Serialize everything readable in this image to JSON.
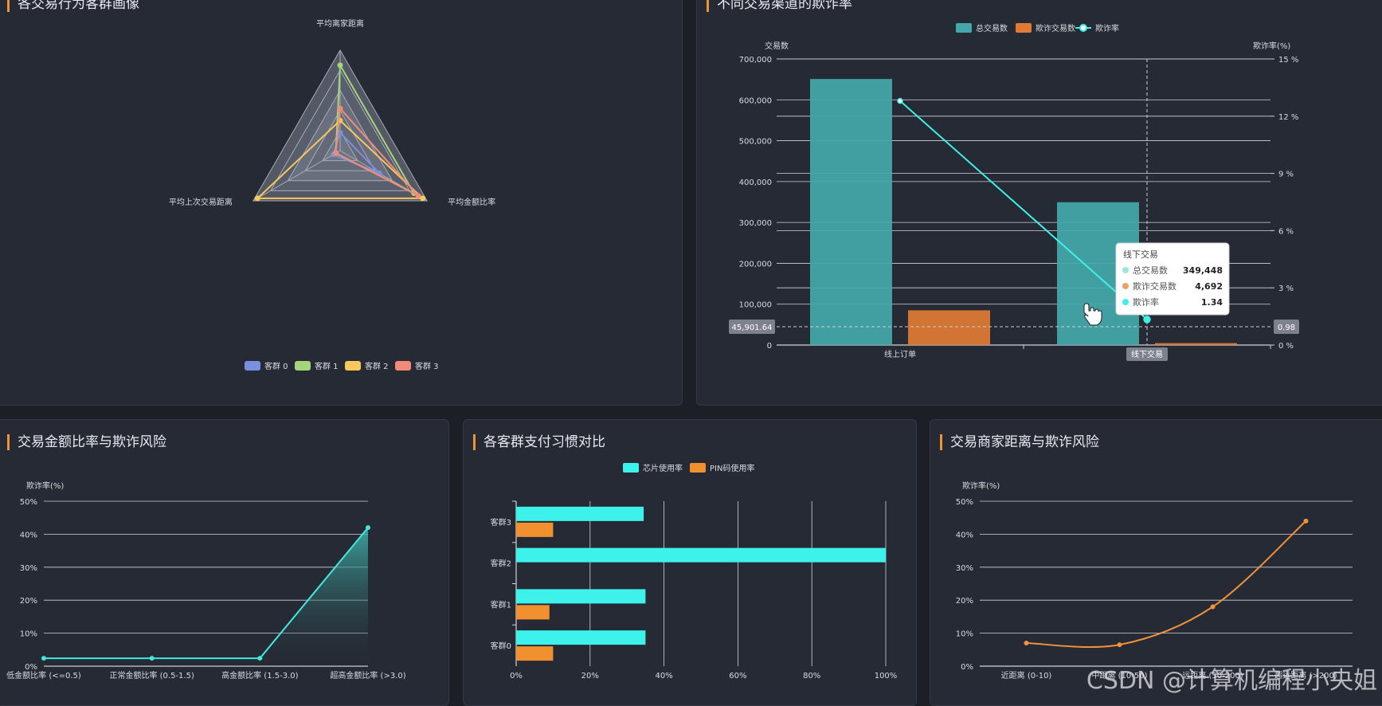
{
  "panels": {
    "radar": {
      "title": "各交易行为客群画像"
    },
    "channel": {
      "title": "不同交易渠道的欺诈率"
    },
    "ratio": {
      "title": "交易金额比率与欺诈风险"
    },
    "payment": {
      "title": "各客群支付习惯对比"
    },
    "distance": {
      "title": "交易商家距离与欺诈风险"
    }
  },
  "watermark": "CSDN @计算机编程小央姐",
  "colors": {
    "teal": "#44a8aa",
    "orange": "#e07a35",
    "cyan": "#40f0e8",
    "accent": "#f0923a"
  },
  "chart_data": [
    {
      "id": "radar",
      "type": "radar",
      "title": "各交易行为客群画像",
      "indicators": [
        "平均离家距离",
        "平均金额比率",
        "平均上次交易距离"
      ],
      "series": [
        {
          "name": "客群 0",
          "color": "#7b8fe0",
          "values": [
            0.18,
            0.45,
            0.08
          ]
        },
        {
          "name": "客群 1",
          "color": "#a5d47c",
          "values": [
            0.85,
            0.85,
            0.05
          ]
        },
        {
          "name": "客群 2",
          "color": "#f7c85a",
          "values": [
            0.3,
            0.95,
            0.95
          ]
        },
        {
          "name": "客群 3",
          "color": "#f28a7c",
          "values": [
            0.42,
            0.9,
            0.05
          ]
        }
      ]
    },
    {
      "id": "channel",
      "type": "bar",
      "title": "不同交易渠道的欺诈率",
      "categories": [
        "线上订单",
        "线下交易"
      ],
      "legend": [
        "总交易数",
        "欺诈交易数",
        "欺诈率"
      ],
      "ylabel_left": "交易数",
      "ylabel_right": "欺诈率(%)",
      "y_left_ticks": [
        "0",
        "100,000",
        "200,000",
        "300,000",
        "400,000",
        "500,000",
        "600,000",
        "700,000"
      ],
      "y_right_ticks": [
        "0 %",
        "3 %",
        "6 %",
        "9 %",
        "12 %",
        "15 %"
      ],
      "ylim_left": [
        0,
        700000
      ],
      "ylim_right": [
        0,
        15
      ],
      "series": [
        {
          "name": "总交易数",
          "type": "bar",
          "values": [
            651000,
            349448
          ]
        },
        {
          "name": "欺诈交易数",
          "type": "bar",
          "values": [
            85000,
            4692
          ]
        },
        {
          "name": "欺诈率",
          "type": "line",
          "values": [
            12.8,
            1.34
          ]
        }
      ],
      "axis_pointer": {
        "left_value": "45,901.64",
        "right_value": "0.98",
        "category": "线下交易"
      },
      "tooltip": {
        "title": "线下交易",
        "rows": [
          {
            "label": "总交易数",
            "value": "349,448",
            "color": "#9ae6e0"
          },
          {
            "label": "欺诈交易数",
            "value": "4,692",
            "color": "#f0a060"
          },
          {
            "label": "欺诈率",
            "value": "1.34",
            "color": "#40f0e8"
          }
        ]
      }
    },
    {
      "id": "ratio",
      "type": "area",
      "title": "交易金额比率与欺诈风险",
      "ylabel": "欺诈率(%)",
      "categories": [
        "低金额比率 (<=0.5)",
        "正常金额比率 (0.5-1.5)",
        "高金额比率 (1.5-3.0)",
        "超高金额比率 (>3.0)"
      ],
      "y_ticks": [
        "0%",
        "10%",
        "20%",
        "30%",
        "40%",
        "50%"
      ],
      "ylim": [
        0,
        50
      ],
      "values": [
        2.4,
        2.4,
        2.4,
        42
      ]
    },
    {
      "id": "payment",
      "type": "bar",
      "orientation": "horizontal",
      "title": "各客群支付习惯对比",
      "legend": [
        "芯片使用率",
        "PIN码使用率"
      ],
      "categories": [
        "客群3",
        "客群2",
        "客群1",
        "客群0"
      ],
      "x_ticks": [
        "0%",
        "20%",
        "40%",
        "60%",
        "80%",
        "100%"
      ],
      "xlim": [
        0,
        100
      ],
      "series": [
        {
          "name": "芯片使用率",
          "values": [
            34.5,
            100,
            35,
            35
          ]
        },
        {
          "name": "PIN码使用率",
          "values": [
            10,
            0,
            9,
            10
          ]
        }
      ]
    },
    {
      "id": "distance",
      "type": "line",
      "title": "交易商家距离与欺诈风险",
      "ylabel": "欺诈率(%)",
      "categories": [
        "近距离 (0-10)",
        "中距离 (10-50)",
        "远距离 (50-200)",
        "超远距离 (>200)"
      ],
      "y_ticks": [
        "0%",
        "10%",
        "20%",
        "30%",
        "40%",
        "50%"
      ],
      "ylim": [
        0,
        50
      ],
      "values": [
        7,
        6.5,
        18,
        44
      ]
    }
  ]
}
